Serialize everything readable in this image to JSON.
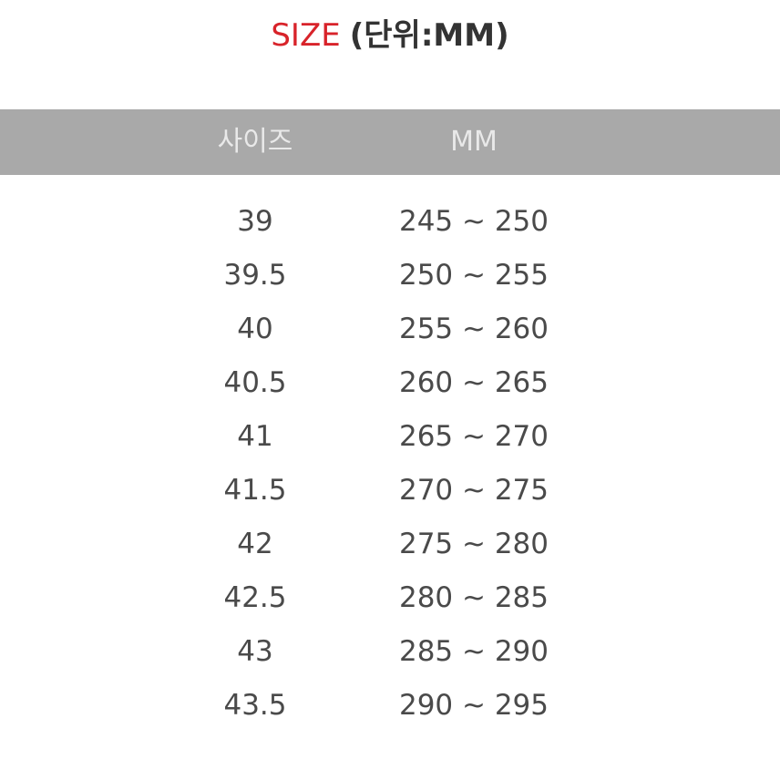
{
  "title": {
    "accent": "SIZE",
    "unit": "(단위:MM)"
  },
  "table": {
    "headers": [
      "사이즈",
      "MM"
    ],
    "rows": [
      {
        "size": "39",
        "mm": "245 ~ 250"
      },
      {
        "size": "39.5",
        "mm": "250 ~ 255"
      },
      {
        "size": "40",
        "mm": "255 ~ 260"
      },
      {
        "size": "40.5",
        "mm": "260 ~ 265"
      },
      {
        "size": "41",
        "mm": "265 ~ 270"
      },
      {
        "size": "41.5",
        "mm": "270 ~ 275"
      },
      {
        "size": "42",
        "mm": "275 ~ 280"
      },
      {
        "size": "42.5",
        "mm": "280 ~ 285"
      },
      {
        "size": "43",
        "mm": "285 ~ 290"
      },
      {
        "size": "43.5",
        "mm": "290 ~ 295"
      }
    ]
  },
  "colors": {
    "accent": "#d8232a",
    "header_bg": "#a9a9a9",
    "header_text": "#e9e9e9",
    "body_text": "#4a4a4a"
  }
}
